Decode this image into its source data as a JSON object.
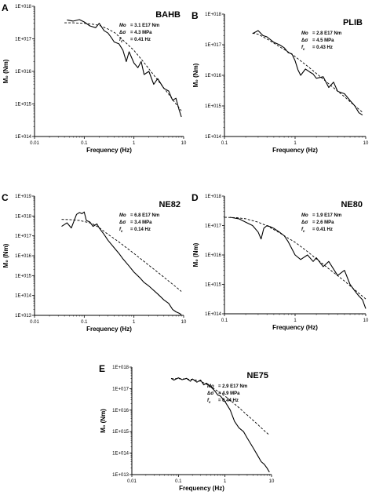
{
  "chart_data": [
    {
      "type": "line",
      "panel_label": "A",
      "title": "BAHB",
      "xlabel": "Frequency (Hz)",
      "ylabel": "M₀  (Nm)",
      "xscale": "log",
      "yscale": "log",
      "xlim": [
        0.01,
        10
      ],
      "ylim": [
        100000000000000.0,
        1e+18
      ],
      "x_ticks": [
        "0.01",
        "0.1",
        "1",
        "10"
      ],
      "y_ticks": [
        "1E+014",
        "1E+015",
        "1E+016",
        "1E+017",
        "1E+018"
      ],
      "annotations": {
        "m0_label": "Mo",
        "m0_value": "= 3.1 E17 Nm",
        "stress_label": "Δσ",
        "stress_value": "= 4.3 MPa",
        "fc_label": "fc",
        "fc_value": "= 0.41 Hz"
      },
      "series": [
        {
          "style": "solid",
          "x": [
            0.045,
            0.06,
            0.08,
            0.1,
            0.13,
            0.17,
            0.2,
            0.25,
            0.3,
            0.35,
            0.4,
            0.5,
            0.6,
            0.7,
            0.8,
            1.0,
            1.2,
            1.4,
            1.6,
            2.0,
            2.5,
            3,
            4,
            5,
            6,
            7,
            8,
            9
          ],
          "y": [
            3.8e+17,
            3.5e+17,
            3.9e+17,
            3.3e+17,
            2.5e+17,
            2.2e+17,
            3e+17,
            1.8e+17,
            1.5e+17,
            1.1e+17,
            8e+16,
            7e+16,
            4.5e+16,
            2e+16,
            4e+16,
            1.8e+16,
            1.3e+16,
            2e+16,
            8000000000000000.0,
            1e+16,
            4000000000000000.0,
            6000000000000000.0,
            3000000000000000.0,
            2500000000000000.0,
            1300000000000000.0,
            1500000000000000.0,
            700000000000000.0,
            400000000000000.0
          ]
        },
        {
          "style": "dashed",
          "x": [
            0.04,
            0.06,
            0.1,
            0.15,
            0.2,
            0.3,
            0.41,
            0.6,
            0.8,
            1,
            1.5,
            2,
            3,
            5,
            7,
            9
          ],
          "y": [
            3.1e+17,
            3.1e+17,
            3e+17,
            2.8e+17,
            2.6e+17,
            2e+17,
            1.55e+17,
            9.2e+16,
            6.1e+16,
            4.4e+16,
            2.1e+16,
            1.2e+16,
            5400000000000000.0,
            2000000000000000.0,
            1000000000000000.0,
            620000000000000.0
          ]
        }
      ]
    },
    {
      "type": "line",
      "panel_label": "B",
      "title": "PLIB",
      "xlabel": "Frequency (Hz)",
      "ylabel": "M₀  (Nm)",
      "xscale": "log",
      "yscale": "log",
      "xlim": [
        0.1,
        10
      ],
      "ylim": [
        100000000000000.0,
        1e+18
      ],
      "x_ticks": [
        "0.1",
        "1",
        "10"
      ],
      "y_ticks": [
        "1E+014",
        "1E+015",
        "1E+016",
        "1E+017",
        "1E+018"
      ],
      "annotations": {
        "m0_label": "Mo",
        "m0_value": "= 2.8 E17 Nm",
        "stress_label": "Δσ",
        "stress_value": "= 4.5 MPa",
        "fc_label": "fc",
        "fc_value": "= 0.43 Hz"
      },
      "series": [
        {
          "style": "solid",
          "x": [
            0.25,
            0.3,
            0.35,
            0.4,
            0.5,
            0.6,
            0.7,
            0.8,
            0.9,
            1.0,
            1.1,
            1.2,
            1.4,
            1.6,
            1.8,
            2.0,
            2.5,
            3,
            3.5,
            4,
            5,
            6,
            7,
            8,
            9
          ],
          "y": [
            2.3e+17,
            2.9e+17,
            2e+17,
            1.8e+17,
            1.2e+17,
            1e+17,
            8e+16,
            5.5e+16,
            5e+16,
            3e+16,
            1.5e+16,
            1e+16,
            1.6e+16,
            1.3e+16,
            1.1e+16,
            8000000000000000.0,
            9000000000000000.0,
            4000000000000000.0,
            6000000000000000.0,
            3000000000000000.0,
            2500000000000000.0,
            1500000000000000.0,
            1000000000000000.0,
            600000000000000.0,
            500000000000000.0
          ]
        },
        {
          "style": "dashed",
          "x": [
            0.25,
            0.3,
            0.43,
            0.6,
            0.8,
            1,
            1.5,
            2,
            3,
            5,
            7,
            9
          ],
          "y": [
            2.4e+17,
            2.2e+17,
            1.4e+17,
            8.7e+16,
            5.8e+16,
            4.1e+16,
            2e+16,
            1.15e+16,
            5300000000000000.0,
            2000000000000000.0,
            1000000000000000.0,
            620000000000000.0
          ]
        }
      ]
    },
    {
      "type": "line",
      "panel_label": "C",
      "title": "NE82",
      "xlabel": "Frequency (Hz)",
      "ylabel": "M₀  (Nm)",
      "xscale": "log",
      "yscale": "log",
      "xlim": [
        0.01,
        10
      ],
      "ylim": [
        10000000000000.0,
        1e+19
      ],
      "x_ticks": [
        "0.01",
        "0.1",
        "1",
        "10"
      ],
      "y_ticks": [
        "1E+013",
        "1E+014",
        "1E+015",
        "1E+016",
        "1E+017",
        "1E+018",
        "1E+019"
      ],
      "annotations": {
        "m0_label": "Mo",
        "m0_value": "= 6.8 E17 Nm",
        "stress_label": "Δσ",
        "stress_value": "= 3.4 MPa",
        "fc_label": "fc",
        "fc_value": "= 0.14 Hz"
      },
      "series": [
        {
          "style": "solid",
          "x": [
            0.035,
            0.045,
            0.055,
            0.07,
            0.08,
            0.09,
            0.1,
            0.11,
            0.13,
            0.15,
            0.18,
            0.2,
            0.25,
            0.3,
            0.4,
            0.5,
            0.6,
            0.8,
            1.0,
            1.3,
            1.6,
            2,
            3,
            4,
            5,
            6,
            7,
            8,
            9
          ],
          "y": [
            3e+17,
            4.5e+17,
            2.5e+17,
            1.2e+18,
            1.5e+18,
            1.3e+18,
            1.6e+18,
            6e+17,
            5e+17,
            3e+17,
            4e+17,
            2.5e+17,
            1.2e+17,
            6e+16,
            2.5e+16,
            1.3e+16,
            7000000000000000.0,
            3000000000000000.0,
            1500000000000000.0,
            800000000000000.0,
            450000000000000.0,
            300000000000000.0,
            120000000000000.0,
            60000000000000.0,
            40000000000000.0,
            20000000000000.0,
            15000000000000.0,
            13000000000000.0,
            11000000000000.0
          ]
        },
        {
          "style": "dashed",
          "x": [
            0.035,
            0.05,
            0.08,
            0.14,
            0.2,
            0.3,
            0.5,
            0.8,
            1,
            2,
            3,
            5,
            7,
            9
          ],
          "y": [
            6.7e+17,
            6.6e+17,
            6e+17,
            4.3e+17,
            2.6e+17,
            1.2e+17,
            4.9e+16,
            2e+16,
            1.3e+16,
            3300000000000000.0,
            1500000000000000.0,
            530000000000000.0,
            270000000000000.0,
            160000000000000.0
          ]
        }
      ]
    },
    {
      "type": "line",
      "panel_label": "D",
      "title": "NE80",
      "xlabel": "Frequency (Hz)",
      "ylabel": "M₀  (Nm)",
      "xscale": "log",
      "yscale": "log",
      "xlim": [
        0.1,
        10
      ],
      "ylim": [
        100000000000000.0,
        1e+18
      ],
      "x_ticks": [
        "0.1",
        "1",
        "10"
      ],
      "y_ticks": [
        "1E+014",
        "1E+015",
        "1E+016",
        "1E+017",
        "1E+018"
      ],
      "annotations": {
        "m0_label": "Mo",
        "m0_value": "= 1.9 E17 Nm",
        "stress_label": "Δσ",
        "stress_value": "= 2.6 MPa",
        "fc_label": "fc",
        "fc_value": "= 0.41 Hz"
      },
      "series": [
        {
          "style": "solid",
          "x": [
            0.12,
            0.16,
            0.2,
            0.25,
            0.3,
            0.33,
            0.36,
            0.4,
            0.45,
            0.5,
            0.6,
            0.7,
            0.8,
            1.0,
            1.2,
            1.5,
            1.8,
            2.0,
            2.5,
            3,
            4,
            5,
            6,
            7,
            8,
            9,
            10
          ],
          "y": [
            1.9e+17,
            1.7e+17,
            1.3e+17,
            1e+17,
            6e+16,
            3.5e+16,
            8e+16,
            1e+17,
            9e+16,
            8e+16,
            6e+16,
            4.5e+16,
            2.8e+16,
            1e+16,
            7000000000000000.0,
            1e+16,
            6000000000000000.0,
            8000000000000000.0,
            4000000000000000.0,
            6000000000000000.0,
            2000000000000000.0,
            3000000000000000.0,
            1000000000000000.0,
            600000000000000.0,
            400000000000000.0,
            300000000000000.0,
            150000000000000.0
          ]
        },
        {
          "style": "dashed",
          "x": [
            0.1,
            0.15,
            0.2,
            0.3,
            0.41,
            0.6,
            0.8,
            1,
            1.5,
            2,
            3,
            5,
            7,
            10
          ],
          "y": [
            1.9e+17,
            1.85e+17,
            1.7e+17,
            1.3e+17,
            9.5e+16,
            5.7e+16,
            3.7e+16,
            2.7e+16,
            1.3e+16,
            7400000000000000.0,
            3400000000000000.0,
            1300000000000000.0,
            650000000000000.0,
            320000000000000.0
          ]
        }
      ]
    },
    {
      "type": "line",
      "panel_label": "E",
      "title": "NE75",
      "xlabel": "Frequency (Hz)",
      "ylabel": "M₀  (Nm)",
      "xscale": "log",
      "yscale": "log",
      "xlim": [
        0.01,
        10
      ],
      "ylim": [
        10000000000000.0,
        1e+18
      ],
      "x_ticks": [
        "0.01",
        "0.1",
        "1",
        "10"
      ],
      "y_ticks": [
        "1E+013",
        "1E+014",
        "1E+015",
        "1E+016",
        "1E+017",
        "1E+018"
      ],
      "annotations": {
        "m0_label": "Mo",
        "m0_value": "= 2.9 E17 Nm",
        "stress_label": "Δσ",
        "stress_value": "= 4.9 MPa",
        "fc_label": "fc",
        "fc_value": "= 0.44 Hz"
      },
      "series": [
        {
          "style": "solid",
          "x": [
            0.07,
            0.08,
            0.1,
            0.12,
            0.15,
            0.18,
            0.2,
            0.25,
            0.3,
            0.35,
            0.4,
            0.5,
            0.6,
            0.7,
            0.8,
            1.0,
            1.3,
            1.6,
            2,
            2.5,
            3,
            4,
            5,
            6,
            7,
            8,
            9
          ],
          "y": [
            3e+17,
            2.5e+17,
            3.2e+17,
            2.6e+17,
            3e+17,
            2.2e+17,
            2.8e+17,
            2e+17,
            2.5e+17,
            1.5e+17,
            1.8e+17,
            1.2e+17,
            8e+16,
            5e+16,
            4.5e+16,
            2.5e+16,
            1e+16,
            3000000000000000.0,
            1500000000000000.0,
            1000000000000000.0,
            500000000000000.0,
            180000000000000.0,
            80000000000000.0,
            40000000000000.0,
            30000000000000.0,
            20000000000000.0,
            13000000000000.0
          ]
        },
        {
          "style": "dashed",
          "x": [
            0.07,
            0.1,
            0.2,
            0.3,
            0.44,
            0.6,
            0.8,
            1,
            1.5,
            2,
            3,
            5,
            7,
            9
          ],
          "y": [
            2.9e+17,
            2.9e+17,
            2.7e+17,
            2.2e+17,
            1.45e+17,
            9.5e+16,
            6.2e+16,
            4.5e+16,
            2.2e+16,
            1.3e+16,
            5900000000000000.0,
            2200000000000000.0,
            1100000000000000.0,
            690000000000000.0
          ]
        }
      ]
    }
  ]
}
